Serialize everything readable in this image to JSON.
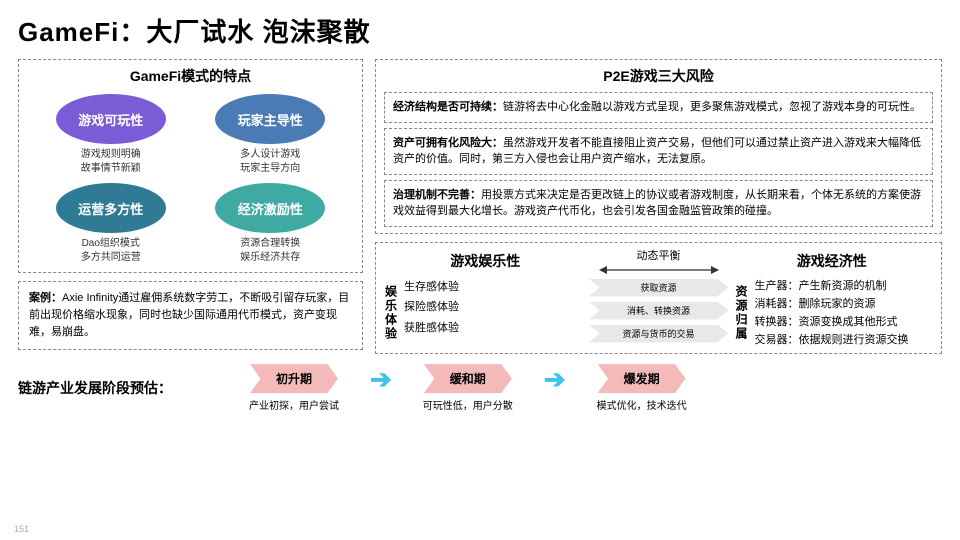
{
  "title": "GameFi：大厂试水 泡沫聚散",
  "left": {
    "heading": "GameFi模式的特点",
    "ovals": [
      {
        "label": "游戏可玩性",
        "sub": "游戏规则明确\n故事情节新颖",
        "color": "#7b5bd6"
      },
      {
        "label": "玩家主导性",
        "sub": "多人设计游戏\n玩家主导方向",
        "color": "#4a7bb5"
      },
      {
        "label": "运营多方性",
        "sub": "Dao组织模式\n多方共同运营",
        "color": "#2f7b96"
      },
      {
        "label": "经济激励性",
        "sub": "资源合理转换\n娱乐经济共存",
        "color": "#3faaa3"
      }
    ],
    "case_label": "案例：",
    "case_text": "Axie Infinity通过雇佣系统数字劳工，不断吸引留存玩家，目前出现价格缩水现象，同时也缺少国际通用代币模式，资产变现难，易崩盘。"
  },
  "right": {
    "heading": "P2E游戏三大风险",
    "risks": [
      {
        "b": "经济结构是否可持续：",
        "t": "链游将去中心化金融以游戏方式呈现，更多聚焦游戏模式，忽视了游戏本身的可玩性。"
      },
      {
        "b": "资产可拥有化风险大：",
        "t": "虽然游戏开发者不能直接阻止资产交易，但他们可以通过禁止资产进入游戏来大幅降低资产的价值。同时，第三方入侵也会让用户资产缩水，无法复原。"
      },
      {
        "b": "治理机制不完善：",
        "t": "用投票方式来决定是否更改链上的协议或者游戏制度，从长期来看，个体无系统的方案使游戏效益得到最大化增长。游戏资产代币化，也会引发各国金融监管政策的碰撞。"
      }
    ],
    "balance": {
      "left_title": "游戏娱乐性",
      "mid_label": "动态平衡",
      "right_title": "游戏经济性",
      "left_v": "娱乐体验",
      "right_v": "资源归属",
      "left_items": [
        "生存感体验",
        "探险感体验",
        "获胜感体验"
      ],
      "mid_items": [
        "获取资源",
        "消耗、转换资源",
        "资源与货币的交易"
      ],
      "right_items": [
        "生产器：产生新资源的机制",
        "消耗器：删除玩家的资源",
        "转换器：资源变换成其他形式",
        "交易器：依据规则进行资源交换"
      ]
    }
  },
  "bottom": {
    "title": "链游产业发展阶段预估：",
    "phases": [
      {
        "name": "初升期",
        "sub": "产业初探，用户尝试"
      },
      {
        "name": "缓和期",
        "sub": "可玩性低，用户分散"
      },
      {
        "name": "爆发期",
        "sub": "模式优化，技术迭代"
      }
    ],
    "phase_color": "#f4b9b9",
    "arrow_color": "#3fc3e8"
  },
  "page": "151"
}
